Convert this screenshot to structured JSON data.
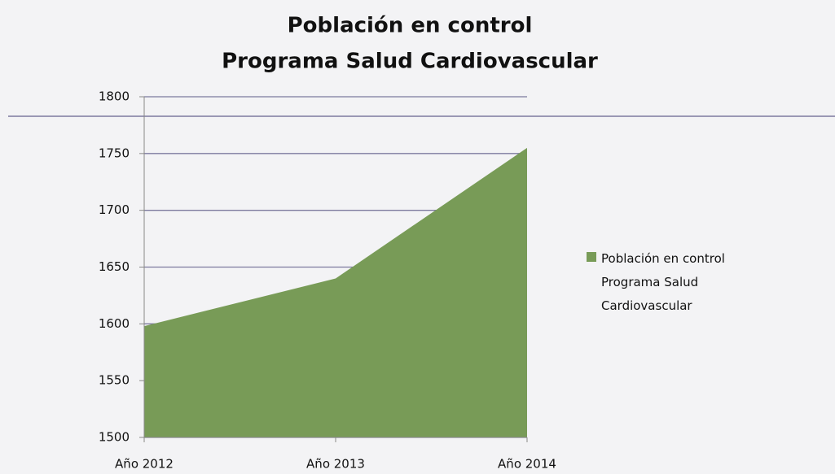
{
  "chart_data": {
    "type": "area",
    "title": [
      "Población en control",
      "Programa Salud Cardiovascular"
    ],
    "categories": [
      "Año 2012",
      "Año 2013",
      "Año 2014"
    ],
    "series": [
      {
        "name": "Población en control Programa Salud Cardiovascular",
        "color": "#789b57",
        "values": [
          1598,
          1640,
          1755
        ]
      }
    ],
    "ylim": [
      1500,
      1800
    ],
    "yticks": [
      1500,
      1550,
      1600,
      1650,
      1700,
      1750,
      1800
    ],
    "grid": true,
    "legend": "right"
  }
}
